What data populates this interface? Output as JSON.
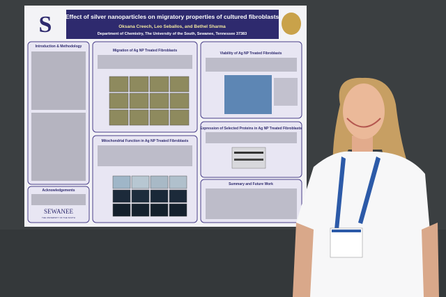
{
  "poster": {
    "title": "Effect of silver nanoparticles on migratory properties of cultured fibroblasts",
    "authors": "Oksana Creech, Leo Seballos, and Bethel Sharma",
    "affiliation": "Department of Chemistry, The University of the South, Sewanee, Tennessee 37383",
    "sections": {
      "intro": "Introduction & Methodology",
      "migration": "Migration of Ag NP Treated Fibroblasts",
      "viability": "Viability of Ag NP Treated Fibroblasts",
      "mito": "Mitochondrial Function in Ag NP Treated Fibroblasts",
      "expression": "Expression of Selected Proteins in Ag NP Treated Fibroblasts",
      "summary": "Summary and Future Work",
      "ack": "Acknowledgements"
    },
    "logo": "SEWANEE",
    "logo_sub": "THE UNIVERSITY OF THE SOUTH"
  }
}
